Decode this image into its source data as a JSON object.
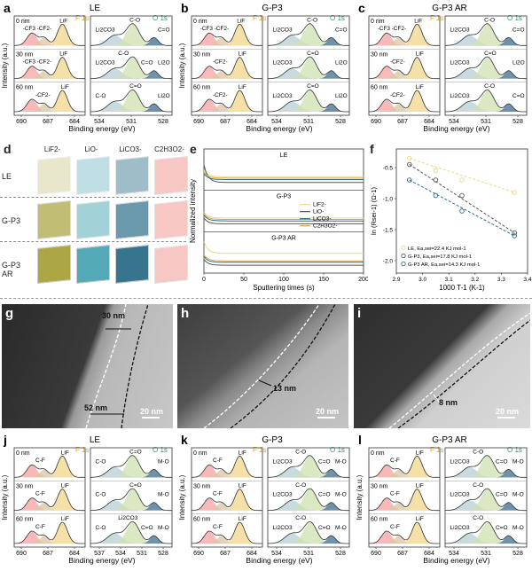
{
  "xps_top": [
    {
      "label": "a",
      "title": "LE",
      "legend_f": "F 1s",
      "legend_o": "O 1s",
      "depths": [
        "0 nm",
        "30 nm",
        "60 nm"
      ],
      "f_labels": [
        [
          "-CF3",
          "-CF2-",
          "LiF"
        ],
        [
          "-CF3",
          "-CF2-",
          "LiF"
        ],
        [
          "-CF2-",
          "LiF"
        ]
      ],
      "o_labels": [
        [
          "Li2CO3",
          "C-O",
          "C=O"
        ],
        [
          "Li2CO3",
          "C-O",
          "C=O",
          "Li2O"
        ],
        [
          "C-O",
          "C=O",
          "Li2O"
        ]
      ],
      "f_ticks": [
        "690",
        "687",
        "684"
      ],
      "o_ticks": [
        "534",
        "531",
        "528"
      ],
      "ylabel": "Intensity (a.u.)"
    },
    {
      "label": "b",
      "title": "G-P3",
      "legend_f": "F 1s",
      "legend_o": "O 1s",
      "depths": [
        "0 nm",
        "30 nm",
        "60 nm"
      ],
      "f_labels": [
        [
          "-CF3",
          "-CF2-",
          "LiF"
        ],
        [
          "-CF2-",
          "LiF"
        ],
        [
          "-CF2-",
          "LiF"
        ]
      ],
      "o_labels": [
        [
          "Li2CO3",
          "C-O",
          "C=O"
        ],
        [
          "Li2CO3",
          "C=O",
          "Li2O"
        ],
        [
          "Li2CO3",
          "C=O",
          "Li2O"
        ]
      ],
      "f_ticks": [
        "690",
        "687",
        "684"
      ],
      "o_ticks": [
        "534",
        "531",
        "528"
      ],
      "ylabel": "Intensity (a.u.)"
    },
    {
      "label": "c",
      "title": "G-P3 AR",
      "legend_f": "F 1s",
      "legend_o": "O 1s",
      "depths": [
        "0 nm",
        "30 nm",
        "60 nm"
      ],
      "f_labels": [
        [
          "-CF3",
          "-CF2-",
          "LiF"
        ],
        [
          "-CF2-",
          "LiF"
        ],
        [
          "-CF2-",
          "LiF"
        ]
      ],
      "o_labels": [
        [
          "Li2CO3",
          "C-O",
          "C=O"
        ],
        [
          "Li2CO3",
          "C=O",
          "Li2O"
        ],
        [
          "Li2CO3",
          "C-O",
          "C=O"
        ]
      ],
      "f_ticks": [
        "690",
        "687",
        "684"
      ],
      "o_ticks": [
        "534",
        "531",
        "528"
      ],
      "ylabel": ""
    }
  ],
  "binding_energy_label": "Binding energy (eV)",
  "panel_d": {
    "label": "d",
    "columns": [
      "LiF2-",
      "LiO-",
      "LiCO3-",
      "C2H3O2-"
    ],
    "rows": [
      "LE",
      "G-P3",
      "G-P3 AR"
    ],
    "colors": [
      "#a8a23a",
      "#4aa5b3",
      "#2d6e8a",
      "#f29a93"
    ]
  },
  "panel_e": {
    "label": "e",
    "sections": [
      "LE",
      "G-P3",
      "G-P3 AR"
    ],
    "ylabel": "Normalized intensity",
    "xlabel": "Sputtering times (s)",
    "xticks": [
      "0",
      "50",
      "100",
      "150",
      "200"
    ],
    "legend": [
      "LiF2-",
      "LiO-",
      "LiCO3-",
      "C2H3O2-"
    ]
  },
  "panel_f": {
    "label": "f",
    "ylabel": "ln (Rsei-1) (Ω-1)",
    "xlabel": "1000 T-1 (K-1)",
    "xticks": [
      "2.9",
      "3.0",
      "3.1",
      "3.2",
      "3.3",
      "3.4"
    ],
    "yticks": [
      "-0.5",
      "-1.0",
      "-1.5",
      "-2.0"
    ],
    "legend": [
      "LE, Ea,sei=22.4 KJ mol-1",
      "G-P3, Ea,sei=17.8 KJ mol-1",
      "G-P3 AR, Ea,sei=14.3 KJ mol-1"
    ]
  },
  "tem": [
    {
      "label": "g",
      "thickness_1": "30 nm",
      "thickness_2": "52 nm",
      "scale": "20 nm"
    },
    {
      "label": "h",
      "thickness_1": "13 nm",
      "scale": "20 nm"
    },
    {
      "label": "i",
      "thickness_1": "8 nm",
      "scale": "20 nm"
    }
  ],
  "xps_bottom": [
    {
      "label": "j",
      "title": "LE",
      "legend_f": "F 1s",
      "legend_o": "O 1s",
      "depths": [
        "0 nm",
        "30 nm",
        "60 nm"
      ],
      "f_labels": [
        [
          "C-F",
          "LiF"
        ],
        [
          "C-F",
          "LiF"
        ],
        [
          "C-F",
          "LiF"
        ]
      ],
      "o_labels": [
        [
          "C-O",
          "C=O",
          "M-O"
        ],
        [
          "C-O",
          "C=O",
          "M-O"
        ],
        [
          "C-O",
          "Li2CO3",
          "C=O",
          "M-O"
        ]
      ],
      "f_ticks": [
        "690",
        "687",
        "684"
      ],
      "o_ticks": [
        "537",
        "534",
        "531",
        "528"
      ],
      "ylabel": "Intensity (a.u.)"
    },
    {
      "label": "k",
      "title": "G-P3",
      "legend_f": "F 1s",
      "legend_o": "O 1s",
      "depths": [
        "0 nm",
        "30 nm",
        "60 nm"
      ],
      "f_labels": [
        [
          "C-F",
          "LiF"
        ],
        [
          "C-F",
          "LiF"
        ],
        [
          "C-F",
          "LiF"
        ]
      ],
      "o_labels": [
        [
          "Li2CO3",
          "C-O",
          "C=O",
          "M-O"
        ],
        [
          "Li2CO3",
          "C-O",
          "C=O",
          "M-O"
        ],
        [
          "Li2CO3",
          "C-O",
          "C=O",
          "M-O"
        ]
      ],
      "f_ticks": [
        "690",
        "687",
        "684"
      ],
      "o_ticks": [
        "534",
        "531",
        "528"
      ],
      "ylabel": "Intensity (a.u.)"
    },
    {
      "label": "l",
      "title": "G-P3 AR",
      "legend_f": "F 1s",
      "legend_o": "O 1s",
      "depths": [
        "0 nm",
        "30 nm",
        "60 nm"
      ],
      "f_labels": [
        [
          "C-F",
          "LiF"
        ],
        [
          "C-F",
          "LiF"
        ],
        [
          "C-F",
          "LiF"
        ]
      ],
      "o_labels": [
        [
          "Li2CO3",
          "C-O",
          "C=O",
          "M-O"
        ],
        [
          "Li2CO3",
          "C-O",
          "C=O",
          "M-O"
        ],
        [
          "Li2CO3",
          "C-O",
          "C=O",
          "M-O"
        ]
      ],
      "f_ticks": [
        "690",
        "687",
        "684"
      ],
      "o_ticks": [
        "534",
        "531",
        "528"
      ],
      "ylabel": "Intensity (a.u.)"
    }
  ]
}
